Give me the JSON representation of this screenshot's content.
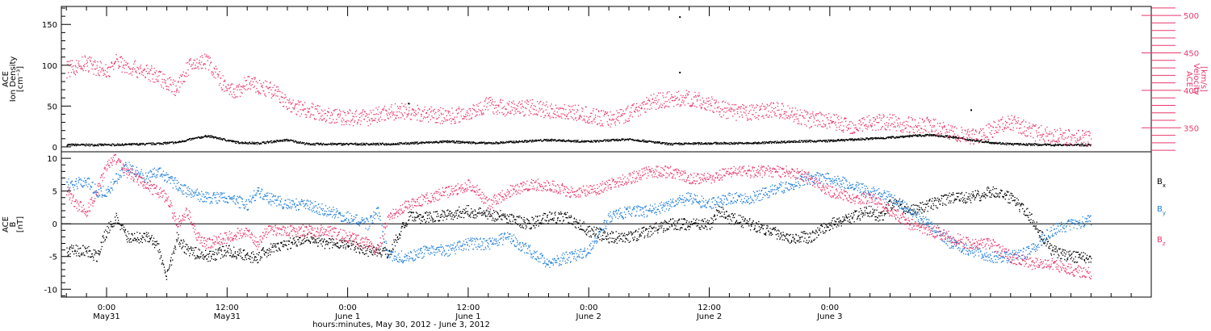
{
  "chart_data": [
    {
      "type": "scatter",
      "panel": "top",
      "ylabel_lines": [
        "ACE",
        "Ion Density",
        "[cm⁻³]"
      ],
      "ylabel2_lines": [
        "ACE",
        "Velocity",
        "[km/s]"
      ],
      "xlabel": "hours:minutes, May 30, 2012 - June  3, 2012",
      "xlim_hours": [
        -4.5,
        104
      ],
      "ylim_left": [
        -6,
        172
      ],
      "ylim_right": [
        318,
        512
      ],
      "left_ticks": [
        0,
        50,
        100,
        150
      ],
      "right_ticks": [
        350,
        400,
        450,
        500
      ],
      "series": [
        {
          "axis": "left",
          "color": "#000000",
          "x": [
            -4,
            0,
            4,
            7,
            8,
            10,
            13,
            15,
            18,
            20,
            24,
            28,
            32,
            34,
            38,
            44,
            48,
            52,
            56,
            60,
            64,
            68,
            72,
            78,
            80,
            82,
            84,
            86,
            88,
            90,
            94,
            98
          ],
          "y": [
            3,
            3,
            4,
            6,
            9,
            14,
            6,
            5,
            9,
            4,
            4,
            4,
            6,
            7,
            5,
            9,
            7,
            10,
            4,
            5,
            5,
            7,
            8,
            12,
            14,
            15,
            13,
            9,
            6,
            4,
            3,
            3
          ]
        },
        {
          "axis": "right",
          "color": "#e8386b",
          "x": [
            -4,
            -2,
            0,
            1,
            2,
            4,
            6,
            7,
            8,
            9,
            10,
            11,
            12,
            13,
            14,
            15,
            16,
            17,
            18,
            20,
            22,
            24,
            26,
            28,
            30,
            32,
            34,
            36,
            38,
            40,
            42,
            44,
            46,
            48,
            50,
            52,
            54,
            56,
            58,
            60,
            62,
            64,
            66,
            68,
            70,
            72,
            74,
            76,
            78,
            80,
            82,
            84,
            86,
            88,
            90,
            92,
            94,
            96,
            98
          ],
          "y": [
            428,
            437,
            425,
            440,
            432,
            425,
            412,
            402,
            430,
            437,
            440,
            420,
            400,
            398,
            412,
            405,
            402,
            398,
            380,
            375,
            367,
            364,
            364,
            372,
            372,
            368,
            366,
            371,
            382,
            376,
            378,
            374,
            372,
            367,
            362,
            370,
            385,
            388,
            390,
            382,
            372,
            370,
            376,
            370,
            361,
            360,
            352,
            358,
            358,
            354,
            354,
            344,
            337,
            347,
            359,
            345,
            340,
            338,
            336
          ]
        }
      ],
      "markers": [
        {
          "x": 57,
          "y": 160
        },
        {
          "x": 57,
          "y": 92
        },
        {
          "x": 30,
          "y": 54
        },
        {
          "x": 86,
          "y": 46
        }
      ]
    },
    {
      "type": "scatter",
      "panel": "bottom",
      "ylabel_lines": [
        "ACE",
        "B",
        "[nT]"
      ],
      "xlabel": "hours:minutes, May 30, 2012 - June  3, 2012",
      "xlim_hours": [
        -4.5,
        104
      ],
      "ylim": [
        -11.2,
        11
      ],
      "y_ticks": [
        -10,
        -5,
        0,
        5,
        10
      ],
      "x_ticks": [
        {
          "hours": 0,
          "time": "0:00",
          "date": "May31"
        },
        {
          "hours": 12,
          "time": "12:00",
          "date": "May31"
        },
        {
          "hours": 24,
          "time": "0:00",
          "date": "June 1"
        },
        {
          "hours": 36,
          "time": "12:00",
          "date": "June 1"
        },
        {
          "hours": 48,
          "time": "0:00",
          "date": "June 2"
        },
        {
          "hours": 60,
          "time": "12:00",
          "date": "June 2"
        },
        {
          "hours": 72,
          "time": "0:00",
          "date": "June 3"
        }
      ],
      "series": [
        {
          "name": "B",
          "sub": "x",
          "color": "#000000",
          "x": [
            -4,
            -2,
            -1,
            0,
            1,
            2,
            3,
            4,
            5,
            5.5,
            6,
            7,
            8,
            10,
            12,
            14,
            15,
            16,
            18,
            20,
            22,
            24,
            26,
            27,
            28,
            30,
            32,
            34,
            36,
            38,
            40,
            42,
            44,
            46,
            48,
            50,
            52,
            54,
            56,
            58,
            60,
            61,
            62,
            64,
            66,
            68,
            70,
            72,
            74,
            76,
            77,
            78,
            79,
            80,
            82,
            84,
            86,
            88,
            90,
            92,
            94,
            96,
            98
          ],
          "y": [
            -4,
            -4,
            -5,
            -1,
            1,
            -2,
            -2,
            -2,
            -3,
            -6,
            -8,
            -2,
            -4,
            -5,
            -4,
            -5,
            -5,
            -4,
            -3,
            -2,
            -3,
            -3,
            -4,
            -4,
            -4.5,
            1,
            1,
            1.5,
            2,
            1.5,
            1,
            0,
            1,
            1,
            -1,
            -2,
            -2,
            -1,
            0,
            0,
            0,
            2,
            1,
            0,
            -1,
            -2,
            -2,
            0,
            1,
            2,
            1,
            3,
            3,
            2,
            3,
            4,
            4,
            5,
            4,
            1,
            -4,
            -5,
            -5
          ]
        },
        {
          "name": "B",
          "sub": "y",
          "color": "#1f7ed8",
          "x": [
            -4,
            -2,
            -1,
            0,
            1,
            2,
            3,
            4,
            5,
            6,
            7,
            8,
            10,
            12,
            14,
            15,
            16,
            18,
            20,
            22,
            24,
            26,
            27,
            28,
            30,
            32,
            34,
            36,
            38,
            40,
            42,
            44,
            46,
            48,
            50,
            52,
            54,
            56,
            58,
            60,
            62,
            64,
            66,
            68,
            70,
            72,
            74,
            76,
            78,
            80,
            82,
            84,
            86,
            88,
            90,
            92,
            94,
            96,
            98
          ],
          "y": [
            6,
            6.5,
            5,
            5,
            7,
            9,
            8,
            7,
            8,
            7,
            6,
            5,
            4,
            4,
            3,
            5,
            4,
            3,
            3,
            2,
            1,
            0,
            2,
            -5,
            -5,
            -4,
            -4,
            -3,
            -3,
            -2,
            -4,
            -6,
            -5,
            -4,
            1,
            2,
            2,
            3,
            4,
            3,
            4,
            4,
            5,
            6,
            7,
            7,
            6,
            5,
            4,
            2,
            0,
            -3,
            -4,
            -5,
            -5,
            -4,
            -1,
            0,
            0.5
          ]
        },
        {
          "name": "B",
          "sub": "z",
          "color": "#e8386b",
          "x": [
            -4,
            -3,
            -2,
            -1,
            0,
            1,
            2,
            3,
            4,
            5,
            6,
            7,
            8,
            9,
            10,
            12,
            14,
            15,
            16,
            18,
            20,
            22,
            24,
            26,
            27,
            28,
            30,
            32,
            34,
            36,
            37,
            38,
            40,
            42,
            44,
            46,
            48,
            50,
            52,
            54,
            56,
            58,
            60,
            62,
            64,
            66,
            68,
            70,
            72,
            74,
            76,
            78,
            80,
            82,
            84,
            86,
            88,
            90,
            92,
            94,
            96,
            98
          ],
          "y": [
            5,
            3,
            2,
            5,
            9,
            10,
            8,
            7,
            6,
            5,
            4,
            0,
            2,
            -2,
            -3,
            -2,
            -1,
            -3,
            -1,
            -1,
            -1,
            -1,
            -2,
            -3,
            -4,
            1,
            3,
            4,
            5,
            6,
            5,
            3,
            5,
            6,
            6,
            5,
            5,
            6,
            7,
            8,
            8,
            7,
            7,
            8,
            8,
            8,
            8,
            7,
            5,
            4,
            4,
            2,
            0,
            -1,
            -2,
            -3,
            -3,
            -5,
            -6,
            -6,
            -7,
            -7.5
          ]
        }
      ]
    }
  ]
}
